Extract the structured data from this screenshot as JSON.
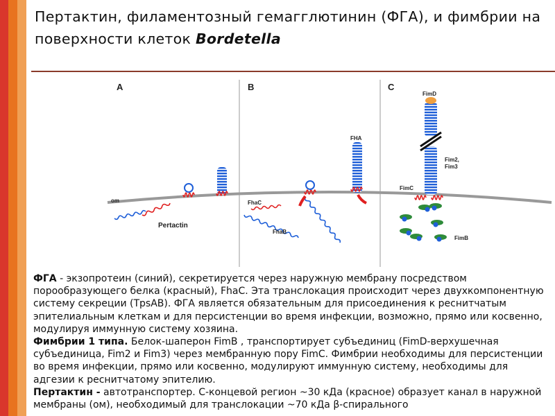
{
  "title": {
    "text": "Пертактин, филаментозный  гемагглютинин (ФГА), и фимбрии на поверхности клеток ",
    "emphasis": "Bordetella"
  },
  "figure": {
    "panels": [
      "A",
      "B",
      "C"
    ],
    "labels": {
      "om": "om",
      "pertactin": "Pertactin",
      "fhac": "FhaC",
      "fhab": "FhaB",
      "fha": "FHA",
      "fimd": "FimD",
      "fim2": "Fim2,",
      "fim3": "Fim3",
      "fimc": "FimC",
      "fimb": "FimB"
    }
  },
  "body": {
    "paragraphs": [
      {
        "bold": "ФГА",
        "text": " - экзопротеин (синий), секретируется через наружную мембрану посредством порообразующего белка (красный), FhaC. Эта транслокация происходит через двухкомпонентную систему секреции (TpsAB). ФГА является обязательным для присоединения к реснитчатым эпителиальным клеткам и для персистенции во время инфекции, возможно, прямо или косвенно, модулируя иммунную систему хозяина."
      },
      {
        "bold": "Фимбрии 1 типа.",
        "text": " Белок-шаперон FimB , транспортирует  субъединиц (FimD-верхушечная субъединица, Fim2 и Fim3) через мембранную пору FimC. Фимбрии необходимы для персистенции во время инфекции, прямо или косвенно, модулируют иммунную систему, необходимы для адгезии к реснитчатому эпителию."
      },
      {
        "bold": "Пертактин -",
        "text": " автотранспортер. С-концевой регион  ~30 кДа (красное) образует канал в наружной мембраны (ом), необходимый для транслокации ~70 кДа β-спирального"
      }
    ]
  }
}
